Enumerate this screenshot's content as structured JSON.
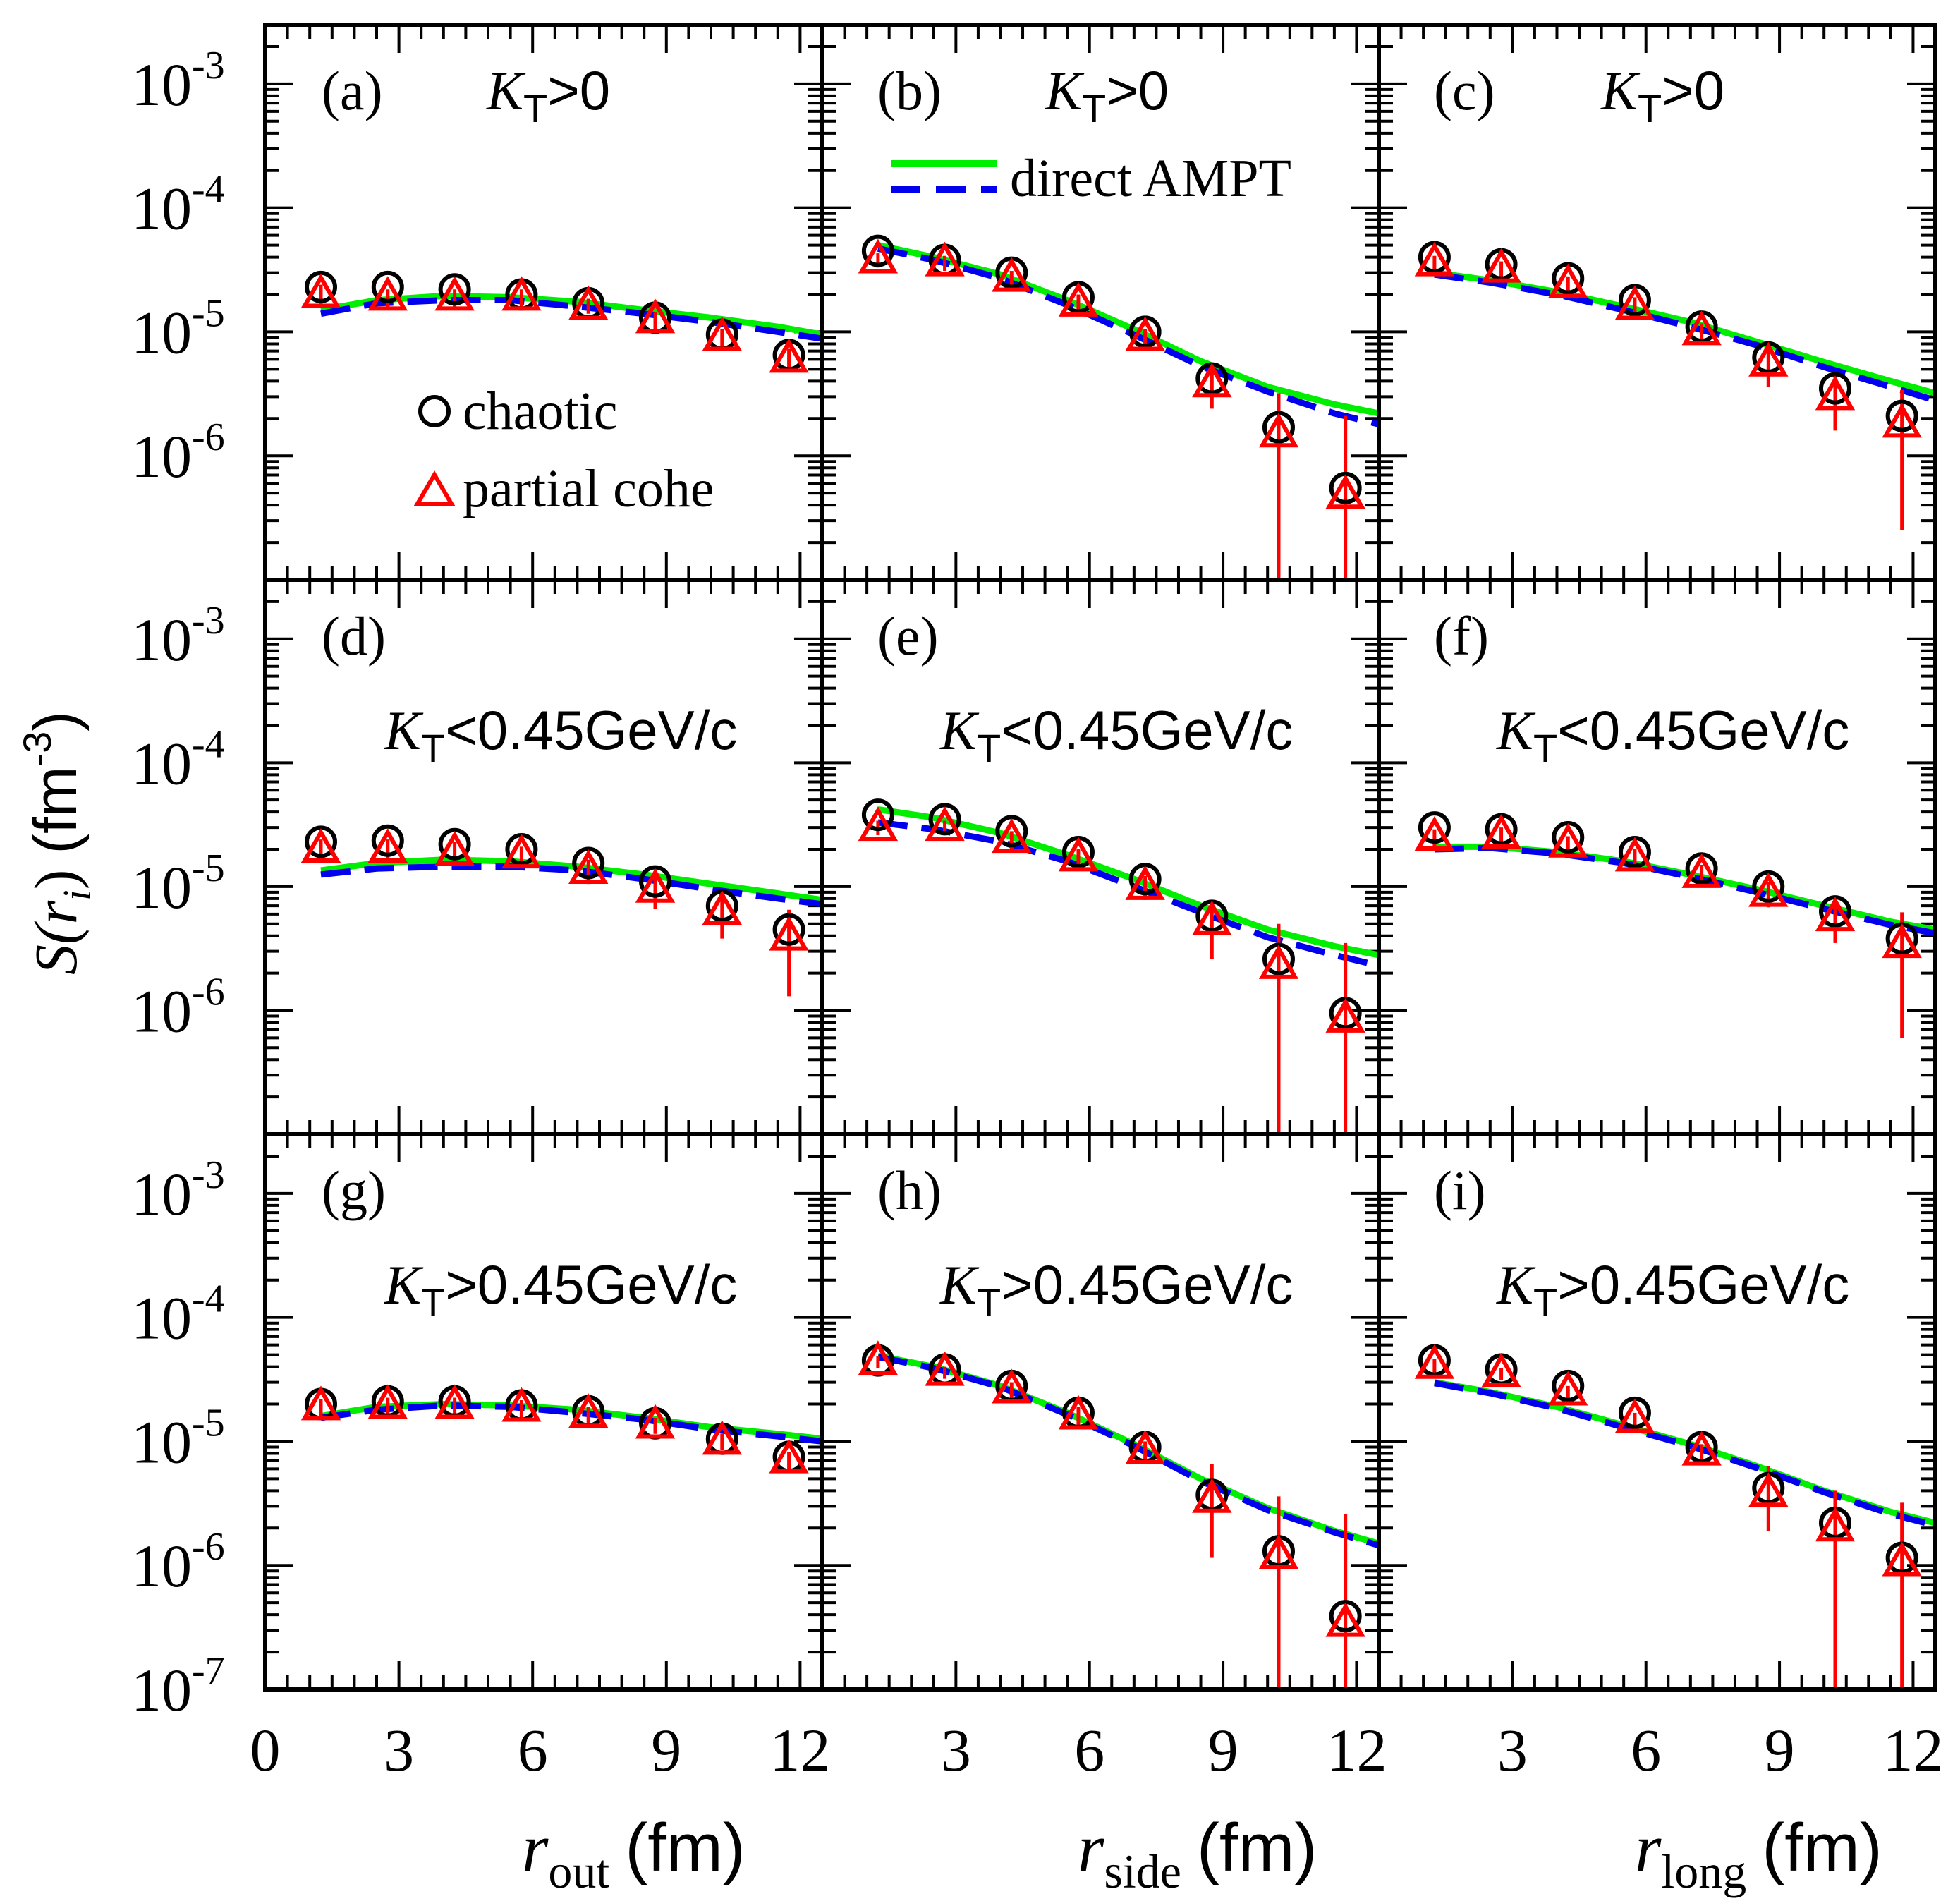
{
  "chart_data": {
    "type": "scatter",
    "yscale": "log",
    "ylim": [
      1e-07,
      0.003
    ],
    "xlim": [
      0,
      12.5
    ],
    "xticks": [
      0,
      3,
      6,
      9,
      12
    ],
    "xtick_labels": [
      "0",
      "3",
      "6",
      "9",
      "12"
    ],
    "ytick_labels": [
      {
        "base": "10",
        "exp": "-3"
      },
      {
        "base": "10",
        "exp": "-4"
      },
      {
        "base": "10",
        "exp": "-5"
      },
      {
        "base": "10",
        "exp": "-6"
      },
      {
        "base": "10",
        "exp": "-7"
      }
    ],
    "ylabel": {
      "main": "S(r",
      "sub": "i",
      "close": ")",
      "unit": "(fm",
      "unit_exp": "-3",
      "unit_close": ")"
    },
    "xlabels": [
      {
        "var": "r",
        "sub": "out",
        "unit": "(fm)"
      },
      {
        "var": "r",
        "sub": "side",
        "unit": "(fm)"
      },
      {
        "var": "r",
        "sub": "long",
        "unit": "(fm)"
      }
    ],
    "legend": {
      "markers": [
        {
          "name": "chaotic",
          "symbol": "circle",
          "color": "#000000"
        },
        {
          "name": "partial cohe",
          "symbol": "triangle",
          "color": "#ff0000"
        }
      ],
      "lines": [
        {
          "name": "direct AMPT",
          "styles": [
            "solid",
            "dashed"
          ],
          "colors": [
            "#00ee00",
            "#0000ee"
          ]
        }
      ]
    },
    "colors": {
      "circle": "#000000",
      "triangle": "#ff0000",
      "solid_line": "#00ee00",
      "dashed_line": "#0000ee",
      "axis": "#000000"
    },
    "kt_labels": {
      "a": {
        "k": "K",
        "sub": "T",
        "cond": ">0"
      },
      "b": {
        "k": "K",
        "sub": "T",
        "cond": ">0"
      },
      "c": {
        "k": "K",
        "sub": "T",
        "cond": ">0"
      },
      "d": {
        "k": "K",
        "sub": "T",
        "cond": "<0.45GeV/c"
      },
      "e": {
        "k": "K",
        "sub": "T",
        "cond": "<0.45GeV/c"
      },
      "f": {
        "k": "K",
        "sub": "T",
        "cond": "<0.45GeV/c"
      },
      "g": {
        "k": "K",
        "sub": "T",
        "cond": ">0.45GeV/c"
      },
      "h": {
        "k": "K",
        "sub": "T",
        "cond": ">0.45GeV/c"
      },
      "i": {
        "k": "K",
        "sub": "T",
        "cond": ">0.45GeV/c"
      }
    },
    "panels": [
      {
        "id": "a",
        "label": "(a)",
        "row": 0,
        "col": 0,
        "axis": "r_out",
        "kt": ">0",
        "x": [
          1.25,
          2.75,
          4.25,
          5.75,
          7.25,
          8.75,
          10.25,
          11.75
        ],
        "chaotic": [
          2.3e-05,
          2.3e-05,
          2.2e-05,
          2e-05,
          1.7e-05,
          1.3e-05,
          9.5e-06,
          6.5e-06
        ],
        "partial": [
          2e-05,
          1.9e-05,
          1.9e-05,
          1.9e-05,
          1.6e-05,
          1.25e-05,
          9e-06,
          6e-06
        ],
        "err_lo": [
          1.6e-05,
          1.6e-05,
          1.6e-05,
          1.6e-05,
          1.4e-05,
          1.05e-05,
          7.5e-06,
          4.8e-06
        ],
        "err_hi": [
          2.4e-05,
          2.2e-05,
          2.2e-05,
          2.2e-05,
          1.85e-05,
          1.45e-05,
          1.05e-05,
          7.3e-06
        ],
        "direct_x": [
          1.25,
          2.5,
          4.0,
          5.5,
          7.0,
          8.5,
          10.0,
          11.5,
          12.5
        ],
        "direct_solid": [
          1.5e-05,
          1.8e-05,
          1.95e-05,
          1.9e-05,
          1.75e-05,
          1.5e-05,
          1.3e-05,
          1.1e-05,
          9.5e-06
        ],
        "direct_dashed": [
          1.4e-05,
          1.7e-05,
          1.8e-05,
          1.8e-05,
          1.6e-05,
          1.4e-05,
          1.2e-05,
          1e-05,
          8.8e-06
        ]
      },
      {
        "id": "b",
        "label": "(b)",
        "row": 0,
        "col": 1,
        "axis": "r_side",
        "kt": ">0",
        "x": [
          1.25,
          2.75,
          4.25,
          5.75,
          7.25,
          8.75,
          10.25,
          11.75
        ],
        "chaotic": [
          4.5e-05,
          3.8e-05,
          3e-05,
          1.9e-05,
          1e-05,
          4.2e-06,
          1.7e-06,
          5.5e-07
        ],
        "partial": [
          3.8e-05,
          3.6e-05,
          2.7e-05,
          1.7e-05,
          9e-06,
          3.8e-06,
          1.5e-06,
          4.8e-07
        ],
        "err_lo": [
          3.3e-05,
          3.1e-05,
          2.3e-05,
          1.4e-05,
          7.5e-06,
          2.4e-06,
          1e-07,
          1e-07
        ],
        "err_hi": [
          4.3e-05,
          4.1e-05,
          3.1e-05,
          2e-05,
          1.05e-05,
          5.2e-06,
          3.2e-06,
          2.1e-06
        ],
        "direct_x": [
          1.25,
          2.5,
          4.0,
          5.5,
          7.0,
          8.5,
          10.0,
          11.5,
          12.5
        ],
        "direct_solid": [
          5e-05,
          4e-05,
          2.9e-05,
          1.8e-05,
          1.05e-05,
          5.8e-06,
          3.6e-06,
          2.6e-06,
          2.2e-06
        ],
        "direct_dashed": [
          4.7e-05,
          3.8e-05,
          2.7e-05,
          1.65e-05,
          9.5e-06,
          5.3e-06,
          3.3e-06,
          2.2e-06,
          1.8e-06
        ]
      },
      {
        "id": "c",
        "label": "(c)",
        "row": 0,
        "col": 2,
        "axis": "r_long",
        "kt": ">0",
        "x": [
          1.25,
          2.75,
          4.25,
          5.75,
          7.25,
          8.75,
          10.25,
          11.75
        ],
        "chaotic": [
          4e-05,
          3.5e-05,
          2.7e-05,
          1.8e-05,
          1.1e-05,
          6.2e-06,
          3.5e-06,
          2.1e-06
        ],
        "partial": [
          3.6e-05,
          3.2e-05,
          2.4e-05,
          1.6e-05,
          1e-05,
          5.6e-06,
          3e-06,
          1.8e-06
        ],
        "err_lo": [
          3.1e-05,
          2.7e-05,
          2e-05,
          1.3e-05,
          8.3e-06,
          3.6e-06,
          1.6e-06,
          2.5e-07
        ],
        "err_hi": [
          4.1e-05,
          3.7e-05,
          2.8e-05,
          1.9e-05,
          1.17e-05,
          7.6e-06,
          4.5e-06,
          3.4e-06
        ],
        "direct_x": [
          1.25,
          2.5,
          4.0,
          5.5,
          7.0,
          8.5,
          10.0,
          11.5,
          12.5
        ],
        "direct_solid": [
          3e-05,
          2.6e-05,
          2.1e-05,
          1.6e-05,
          1.2e-05,
          8.3e-06,
          5.7e-06,
          4e-06,
          3.2e-06
        ],
        "direct_dashed": [
          2.9e-05,
          2.5e-05,
          2e-05,
          1.5e-05,
          1.1e-05,
          7.8e-06,
          5.2e-06,
          3.6e-06,
          2.8e-06
        ]
      },
      {
        "id": "d",
        "label": "(d)",
        "row": 1,
        "col": 0,
        "axis": "r_out",
        "kt": "<0.45GeV/c",
        "x": [
          1.25,
          2.75,
          4.25,
          5.75,
          7.25,
          8.75,
          10.25,
          11.75
        ],
        "chaotic": [
          2.3e-05,
          2.35e-05,
          2.2e-05,
          2e-05,
          1.55e-05,
          1.1e-05,
          7e-06,
          4.5e-06
        ],
        "partial": [
          2e-05,
          2e-05,
          1.9e-05,
          1.8e-05,
          1.35e-05,
          9.5e-06,
          6.3e-06,
          3.9e-06
        ],
        "err_lo": [
          1.6e-05,
          1.6e-05,
          1.6e-05,
          1.5e-05,
          1.05e-05,
          6.6e-06,
          3.8e-06,
          1.3e-06
        ],
        "err_hi": [
          2.4e-05,
          2.4e-05,
          2.3e-05,
          2.1e-05,
          1.65e-05,
          1.24e-05,
          8.8e-06,
          6.5e-06
        ],
        "direct_x": [
          1.25,
          2.5,
          4.0,
          5.5,
          7.0,
          8.5,
          10.0,
          11.5,
          12.5
        ],
        "direct_solid": [
          1.35e-05,
          1.55e-05,
          1.65e-05,
          1.6e-05,
          1.45e-05,
          1.25e-05,
          1.05e-05,
          8.8e-06,
          7.8e-06
        ],
        "direct_dashed": [
          1.25e-05,
          1.4e-05,
          1.45e-05,
          1.45e-05,
          1.35e-05,
          1.15e-05,
          9.5e-06,
          8e-06,
          7.2e-06
        ]
      },
      {
        "id": "e",
        "label": "(e)",
        "row": 1,
        "col": 1,
        "axis": "r_side",
        "kt": "<0.45GeV/c",
        "x": [
          1.25,
          2.75,
          4.25,
          5.75,
          7.25,
          8.75,
          10.25,
          11.75
        ],
        "chaotic": [
          3.8e-05,
          3.5e-05,
          2.8e-05,
          1.9e-05,
          1.15e-05,
          5.8e-06,
          2.6e-06,
          9.5e-07
        ],
        "partial": [
          3e-05,
          3e-05,
          2.4e-05,
          1.7e-05,
          1e-05,
          5.2e-06,
          2.3e-06,
          8.5e-07
        ],
        "err_lo": [
          2.6e-05,
          2.6e-05,
          2e-05,
          1.4e-05,
          7.8e-06,
          2.6e-06,
          1e-07,
          1e-07
        ],
        "err_hi": [
          3.4e-05,
          3.4e-05,
          2.8e-05,
          2e-05,
          1.22e-05,
          7.8e-06,
          5e-06,
          3.5e-06
        ],
        "direct_x": [
          1.25,
          2.5,
          4.0,
          5.5,
          7.0,
          8.5,
          10.0,
          11.5,
          12.5
        ],
        "direct_solid": [
          4.2e-05,
          3.6e-05,
          2.7e-05,
          1.8e-05,
          1.15e-05,
          7e-06,
          4.5e-06,
          3.3e-06,
          2.8e-06
        ],
        "direct_dashed": [
          3.3e-05,
          2.9e-05,
          2.3e-05,
          1.6e-05,
          1e-05,
          6.2e-06,
          3.9e-06,
          2.8e-06,
          2.3e-06
        ]
      },
      {
        "id": "f",
        "label": "(f)",
        "row": 1,
        "col": 2,
        "axis": "r_long",
        "kt": "<0.45GeV/c",
        "x": [
          1.25,
          2.75,
          4.25,
          5.75,
          7.25,
          8.75,
          10.25,
          11.75
        ],
        "chaotic": [
          3e-05,
          2.9e-05,
          2.5e-05,
          1.9e-05,
          1.4e-05,
          1e-05,
          6.3e-06,
          3.8e-06
        ],
        "partial": [
          2.5e-05,
          2.6e-05,
          2.2e-05,
          1.7e-05,
          1.25e-05,
          8.8e-06,
          5.6e-06,
          3.4e-06
        ],
        "err_lo": [
          2.1e-05,
          2.2e-05,
          1.85e-05,
          1.4e-05,
          1e-05,
          6.8e-06,
          3.5e-06,
          6e-07
        ],
        "err_hi": [
          2.9e-05,
          3e-05,
          2.55e-05,
          2e-05,
          1.5e-05,
          1.08e-05,
          7.7e-06,
          6.2e-06
        ],
        "direct_x": [
          1.25,
          2.5,
          4.0,
          5.5,
          7.0,
          8.5,
          10.0,
          11.5,
          12.5
        ],
        "direct_solid": [
          2.1e-05,
          2.1e-05,
          1.9e-05,
          1.6e-05,
          1.25e-05,
          9.5e-06,
          7e-06,
          5.2e-06,
          4.5e-06
        ],
        "direct_dashed": [
          2e-05,
          2.05e-05,
          1.85e-05,
          1.55e-05,
          1.2e-05,
          9e-06,
          6.6e-06,
          4.9e-06,
          4.2e-06
        ]
      },
      {
        "id": "g",
        "label": "(g)",
        "row": 2,
        "col": 0,
        "axis": "r_out",
        "kt": ">0.45GeV/c",
        "x": [
          1.25,
          2.75,
          4.25,
          5.75,
          7.25,
          8.75,
          10.25,
          11.75
        ],
        "chaotic": [
          2e-05,
          2.1e-05,
          2.1e-05,
          1.95e-05,
          1.75e-05,
          1.4e-05,
          1.05e-05,
          7.5e-06
        ],
        "partial": [
          1.9e-05,
          1.95e-05,
          1.95e-05,
          1.85e-05,
          1.65e-05,
          1.35e-05,
          1e-05,
          7.1e-06
        ],
        "err_lo": [
          1.6e-05,
          1.65e-05,
          1.65e-05,
          1.55e-05,
          1.4e-05,
          1.15e-05,
          8.5e-06,
          6e-06
        ],
        "err_hi": [
          2.2e-05,
          2.25e-05,
          2.25e-05,
          2.15e-05,
          1.9e-05,
          1.55e-05,
          1.15e-05,
          8.2e-06
        ],
        "direct_x": [
          1.25,
          2.5,
          4.0,
          5.5,
          7.0,
          8.5,
          10.0,
          11.5,
          12.5
        ],
        "direct_solid": [
          1.6e-05,
          1.9e-05,
          2e-05,
          1.95e-05,
          1.8e-05,
          1.55e-05,
          1.3e-05,
          1.15e-05,
          1.05e-05
        ],
        "direct_dashed": [
          1.55e-05,
          1.8e-05,
          1.95e-05,
          1.9e-05,
          1.7e-05,
          1.5e-05,
          1.25e-05,
          1.1e-05,
          1e-05
        ]
      },
      {
        "id": "h",
        "label": "(h)",
        "row": 2,
        "col": 1,
        "axis": "r_side",
        "kt": ">0.45GeV/c",
        "x": [
          1.25,
          2.75,
          4.25,
          5.75,
          7.25,
          8.75,
          10.25,
          11.75
        ],
        "chaotic": [
          4.5e-05,
          3.8e-05,
          2.8e-05,
          1.7e-05,
          9e-06,
          3.7e-06,
          1.3e-06,
          3.9e-07
        ],
        "partial": [
          4.4e-05,
          3.6e-05,
          2.6e-05,
          1.6e-05,
          8.4e-06,
          3.4e-06,
          1.2e-06,
          3.4e-07
        ],
        "err_lo": [
          3.9e-05,
          3.2e-05,
          2.2e-05,
          1.3e-05,
          6.8e-06,
          1.15e-06,
          1e-07,
          1e-07
        ],
        "err_hi": [
          4.9e-05,
          4e-05,
          3e-05,
          1.9e-05,
          1e-05,
          6.6e-06,
          3.6e-06,
          2.6e-06
        ],
        "direct_x": [
          1.25,
          2.5,
          4.0,
          5.5,
          7.0,
          8.5,
          10.0,
          11.5,
          12.5
        ],
        "direct_solid": [
          4.9e-05,
          4e-05,
          2.8e-05,
          1.7e-05,
          9.5e-06,
          5e-06,
          2.9e-06,
          1.9e-06,
          1.5e-06
        ],
        "direct_dashed": [
          4.8e-05,
          3.9e-05,
          2.75e-05,
          1.65e-05,
          9.2e-06,
          4.8e-06,
          2.8e-06,
          1.85e-06,
          1.45e-06
        ]
      },
      {
        "id": "i",
        "label": "(i)",
        "row": 2,
        "col": 2,
        "axis": "r_long",
        "kt": ">0.45GeV/c",
        "x": [
          1.25,
          2.75,
          4.25,
          5.75,
          7.25,
          8.75,
          10.25,
          11.75
        ],
        "chaotic": [
          4.5e-05,
          3.8e-05,
          2.8e-05,
          1.7e-05,
          9e-06,
          4.2e-06,
          2.2e-06,
          1.15e-06
        ],
        "partial": [
          4.1e-05,
          3.5e-05,
          2.5e-05,
          1.5e-05,
          8.2e-06,
          3.8e-06,
          2e-06,
          1.05e-06
        ],
        "err_lo": [
          3.6e-05,
          3.1e-05,
          2.2e-05,
          1.3e-05,
          6.9e-06,
          1.9e-06,
          1e-07,
          1e-07
        ],
        "err_hi": [
          4.6e-05,
          3.9e-05,
          2.8e-05,
          1.7e-05,
          9.5e-06,
          6.3e-06,
          4e-06,
          3.2e-06
        ],
        "direct_x": [
          1.25,
          2.5,
          4.0,
          5.5,
          7.0,
          8.5,
          10.0,
          11.5,
          12.5
        ],
        "direct_solid": [
          3e-05,
          2.5e-05,
          1.9e-05,
          1.35e-05,
          9.5e-06,
          6.3e-06,
          4e-06,
          2.7e-06,
          2.2e-06
        ],
        "direct_dashed": [
          2.95e-05,
          2.45e-05,
          1.85e-05,
          1.3e-05,
          9.2e-06,
          6.1e-06,
          3.9e-06,
          2.6e-06,
          2.1e-06
        ]
      }
    ]
  }
}
